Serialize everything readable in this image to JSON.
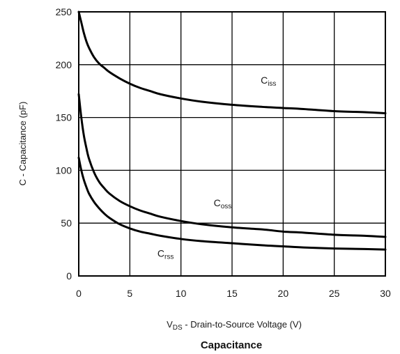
{
  "chart_data": {
    "type": "line",
    "title": "Capacitance",
    "xlabel_main": "V",
    "xlabel_sub": "DS",
    "xlabel_rest": " - Drain-to-Source Voltage (V)",
    "ylabel": "C - Capacitance (pF)",
    "xlim": [
      0,
      30
    ],
    "ylim": [
      0,
      250
    ],
    "xticks": [
      0,
      5,
      10,
      15,
      20,
      25,
      30
    ],
    "yticks": [
      0,
      50,
      100,
      150,
      200,
      250
    ],
    "grid": true,
    "series": [
      {
        "name": "Ciss",
        "name_main": "C",
        "name_sub": "iss",
        "x": [
          0,
          0.25,
          0.5,
          0.75,
          1,
          1.5,
          2,
          2.5,
          3,
          4,
          5,
          6,
          7,
          8,
          10,
          12,
          15,
          18,
          20,
          22,
          25,
          28,
          30
        ],
        "y": [
          250,
          240,
          230,
          222,
          216,
          207,
          201,
          197,
          193,
          187,
          182,
          178,
          175,
          172,
          168,
          165,
          162,
          160,
          159,
          158,
          156,
          155,
          154
        ]
      },
      {
        "name": "Coss",
        "name_main": "C",
        "name_sub": "oss",
        "x": [
          0,
          0.25,
          0.5,
          0.75,
          1,
          1.5,
          2,
          2.5,
          3,
          4,
          5,
          6,
          7,
          8,
          10,
          12,
          15,
          18,
          20,
          22,
          25,
          28,
          30
        ],
        "y": [
          172,
          150,
          133,
          121,
          111,
          98,
          89,
          83,
          78,
          71,
          66,
          62,
          59,
          56,
          52,
          49,
          46,
          44,
          42,
          41,
          39,
          38,
          37
        ]
      },
      {
        "name": "Crss",
        "name_main": "C",
        "name_sub": "rss",
        "x": [
          0,
          0.25,
          0.5,
          0.75,
          1,
          1.5,
          2,
          2.5,
          3,
          4,
          5,
          6,
          7,
          8,
          10,
          12,
          15,
          18,
          20,
          22,
          25,
          28,
          30
        ],
        "y": [
          112,
          100,
          91,
          84,
          78,
          70,
          64,
          59,
          55,
          49,
          45,
          42,
          40,
          38,
          35,
          33,
          31,
          29,
          28,
          27,
          26,
          25.5,
          25
        ]
      }
    ],
    "annotations": [
      {
        "series": "Ciss",
        "x": 17.8,
        "y": 182
      },
      {
        "series": "Coss",
        "x": 13.2,
        "y": 66
      },
      {
        "series": "Crss",
        "x": 7.7,
        "y": 18
      }
    ]
  }
}
